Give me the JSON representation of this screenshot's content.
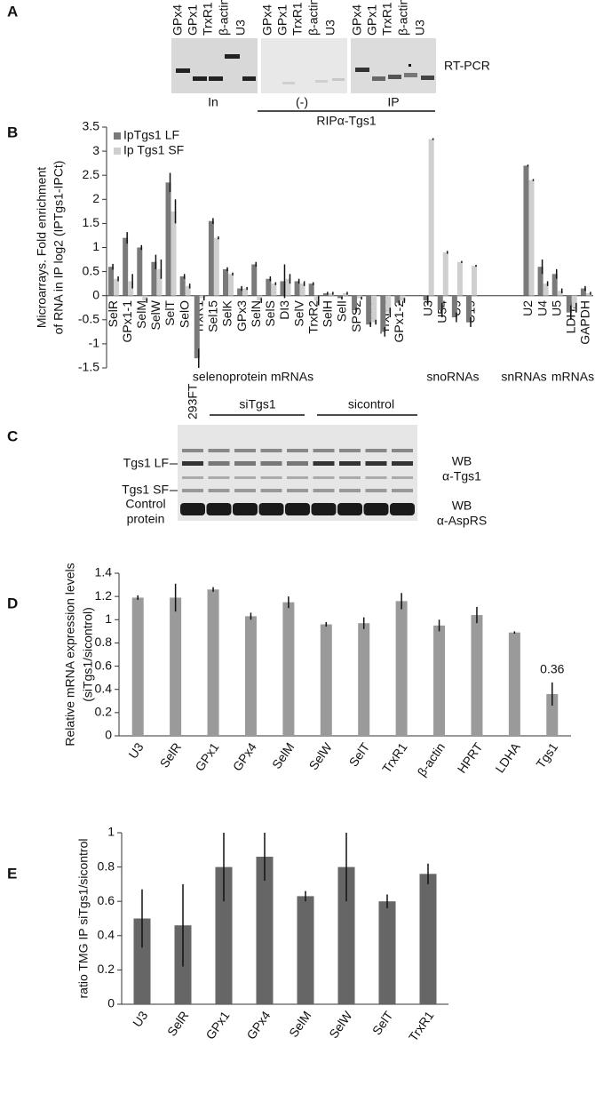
{
  "panel_labels": [
    "A",
    "B",
    "C",
    "D",
    "E"
  ],
  "panel_a": {
    "lanes": [
      [
        "GPx4",
        "GPx1",
        "TrxR1",
        "β-actin",
        "U3"
      ],
      [
        "GPx4",
        "GPx1",
        "TrxR1",
        "β-actin",
        "U3"
      ],
      [
        "GPx4",
        "GPx1",
        "TrxR1",
        "β-actin",
        "U3"
      ]
    ],
    "method": "RT-PCR",
    "groups": [
      "In",
      "(-)",
      "IP"
    ],
    "bracket": "RIPα-Tgs1"
  },
  "panel_c": {
    "first_lane": "293FT",
    "groups": [
      "siTgs1",
      "sicontrol"
    ],
    "left_labels": [
      "Tgs1 LF",
      "Tgs1 SF",
      "Control",
      "protein"
    ],
    "right_labels": [
      "WB",
      "α-Tgs1",
      "WB",
      "α-AspRS"
    ]
  },
  "chart_data": [
    {
      "type": "bar",
      "ylabel": [
        "Microarrays. Fold enrichment",
        "of RNA in IP log2 (IPTgs1-IPCt)"
      ],
      "categories": [
        "SelR",
        "GPx1-1",
        "SelM",
        "SelW",
        "SelT",
        "SelO",
        "TrxR1",
        "Sel15",
        "SelK",
        "GPx3",
        "SelN",
        "SelS",
        "DI3",
        "SelV",
        "TrxR2",
        "SelH",
        "SelI",
        "SPS2",
        "DI2",
        "TrxR3",
        "GPx1-2",
        null,
        "U3",
        "U54",
        "U9",
        "U19",
        null,
        null,
        null,
        "U2",
        "U4",
        "U5",
        "LDHA",
        "GAPDH"
      ],
      "series": [
        {
          "name": "IpTgs1 LF",
          "color": "#7a7a7a",
          "values": [
            0.6,
            1.2,
            1.0,
            0.7,
            2.35,
            0.4,
            -1.3,
            1.55,
            0.55,
            0.15,
            0.65,
            0.35,
            0.3,
            0.3,
            0.25,
            0.05,
            -0.05,
            -0.3,
            -0.6,
            -0.75,
            -0.15,
            null,
            -0.1,
            -0.3,
            -0.45,
            -0.55,
            null,
            null,
            null,
            2.7,
            0.6,
            0.45,
            -0.35,
            0.15
          ],
          "errors": [
            0.06,
            0.12,
            0.05,
            0.15,
            0.2,
            0.05,
            0.2,
            0.06,
            0.04,
            0.05,
            0.05,
            0.05,
            0.35,
            0.05,
            0.03,
            0.03,
            0.03,
            0.05,
            0.05,
            0.1,
            0.05,
            null,
            0.1,
            0.15,
            0.1,
            0.1,
            null,
            null,
            null,
            0.02,
            0.15,
            0.1,
            0.15,
            0.05
          ]
        },
        {
          "name": "Ip Tgs1 SF",
          "color": "#cfcfcf",
          "values": [
            0.35,
            0.3,
            -0.1,
            0.55,
            1.75,
            0.2,
            -0.05,
            1.2,
            0.45,
            0.15,
            -0.1,
            0.25,
            0.35,
            0.25,
            -0.1,
            0.05,
            0.05,
            -0.05,
            -0.55,
            -0.35,
            -0.1,
            null,
            3.25,
            0.9,
            0.7,
            0.62,
            null,
            null,
            null,
            2.4,
            0.25,
            0.1,
            -0.25,
            0.05
          ],
          "errors": [
            0.05,
            0.15,
            0.05,
            0.2,
            0.25,
            0.05,
            0.05,
            0.03,
            0.03,
            0.03,
            0.05,
            0.03,
            0.1,
            0.05,
            0.1,
            0.03,
            0.03,
            0.03,
            0.05,
            0.1,
            0.05,
            null,
            0.02,
            0.03,
            0.02,
            0.02,
            null,
            null,
            null,
            0.02,
            0.05,
            0.05,
            0.1,
            0.03
          ]
        }
      ],
      "ylim": [
        -1.5,
        3.5
      ],
      "yticks": [
        -1.5,
        -1,
        -0.5,
        0,
        0.5,
        1,
        1.5,
        2,
        2.5,
        3,
        3.5
      ],
      "legend": "upper left",
      "group_labels": [
        "selenoprotein mRNAs",
        "snoRNAs",
        "snRNAs",
        "mRNAs"
      ]
    },
    {
      "type": "bar",
      "ylabel": [
        "Relative mRNA expression levels",
        "(siTgs1/sicontrol)"
      ],
      "categories": [
        "U3",
        "SelR",
        "GPx1",
        "GPx4",
        "SelM",
        "SelW",
        "SelT",
        "TrxR1",
        "β-actin",
        "HPRT",
        "LDHA",
        "Tgs1"
      ],
      "series": [
        {
          "name": "siTgs1/sicontrol",
          "color": "#9a9a9a",
          "values": [
            1.19,
            1.19,
            1.26,
            1.03,
            1.15,
            0.96,
            0.97,
            1.16,
            0.95,
            1.04,
            0.89,
            0.36
          ],
          "errors": [
            0.02,
            0.12,
            0.02,
            0.03,
            0.05,
            0.02,
            0.05,
            0.07,
            0.05,
            0.07,
            0.01,
            0.1
          ],
          "value_labels": [
            null,
            null,
            null,
            null,
            null,
            null,
            null,
            null,
            null,
            null,
            null,
            "0.36"
          ]
        }
      ],
      "ylim": [
        0,
        1.4
      ],
      "yticks": [
        0,
        0.2,
        0.4,
        0.6,
        0.8,
        1,
        1.2,
        1.4
      ]
    },
    {
      "type": "bar",
      "ylabel": [
        "ratio TMG IP siTgs1/sicontrol"
      ],
      "categories": [
        "U3",
        "SelR",
        "GPx1",
        "GPx4",
        "SelM",
        "SelW",
        "SelT",
        "TrxR1"
      ],
      "series": [
        {
          "name": "ratio",
          "color": "#666666",
          "values": [
            0.5,
            0.46,
            0.8,
            0.86,
            0.63,
            0.8,
            0.6,
            0.76
          ],
          "errors": [
            0.17,
            0.24,
            0.2,
            0.14,
            0.03,
            0.2,
            0.04,
            0.06
          ]
        }
      ],
      "ylim": [
        0,
        1
      ],
      "yticks": [
        0,
        0.2,
        0.4,
        0.6,
        0.8,
        1
      ]
    }
  ]
}
